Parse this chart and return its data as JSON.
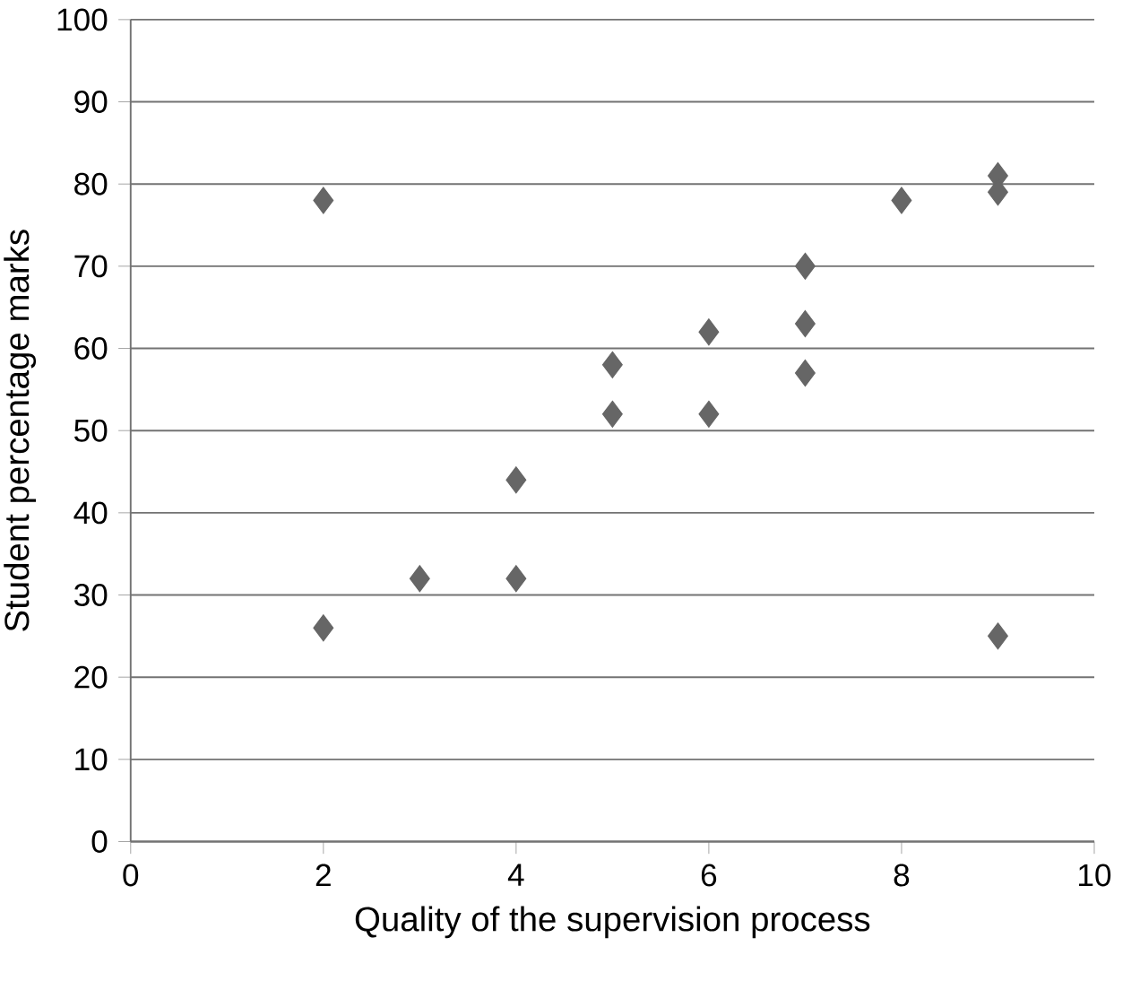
{
  "chart_data": {
    "type": "scatter",
    "xlabel": "Quality of the supervision process",
    "ylabel": "Student percentage marks",
    "x": [
      2,
      2,
      3,
      4,
      4,
      5,
      5,
      6,
      6,
      7,
      7,
      7,
      8,
      9,
      9,
      9
    ],
    "values": [
      78,
      26,
      32,
      44,
      32,
      58,
      52,
      62,
      52,
      70,
      63,
      57,
      78,
      81,
      79,
      25
    ],
    "color": "#666666",
    "marker": "diamond",
    "xlim": [
      0,
      10
    ],
    "xticks": [
      0,
      2,
      4,
      6,
      8,
      10
    ],
    "ylim": [
      0,
      100
    ],
    "yticks": [
      0,
      10,
      20,
      30,
      40,
      50,
      60,
      70,
      80,
      90,
      100
    ],
    "grid": "y"
  }
}
